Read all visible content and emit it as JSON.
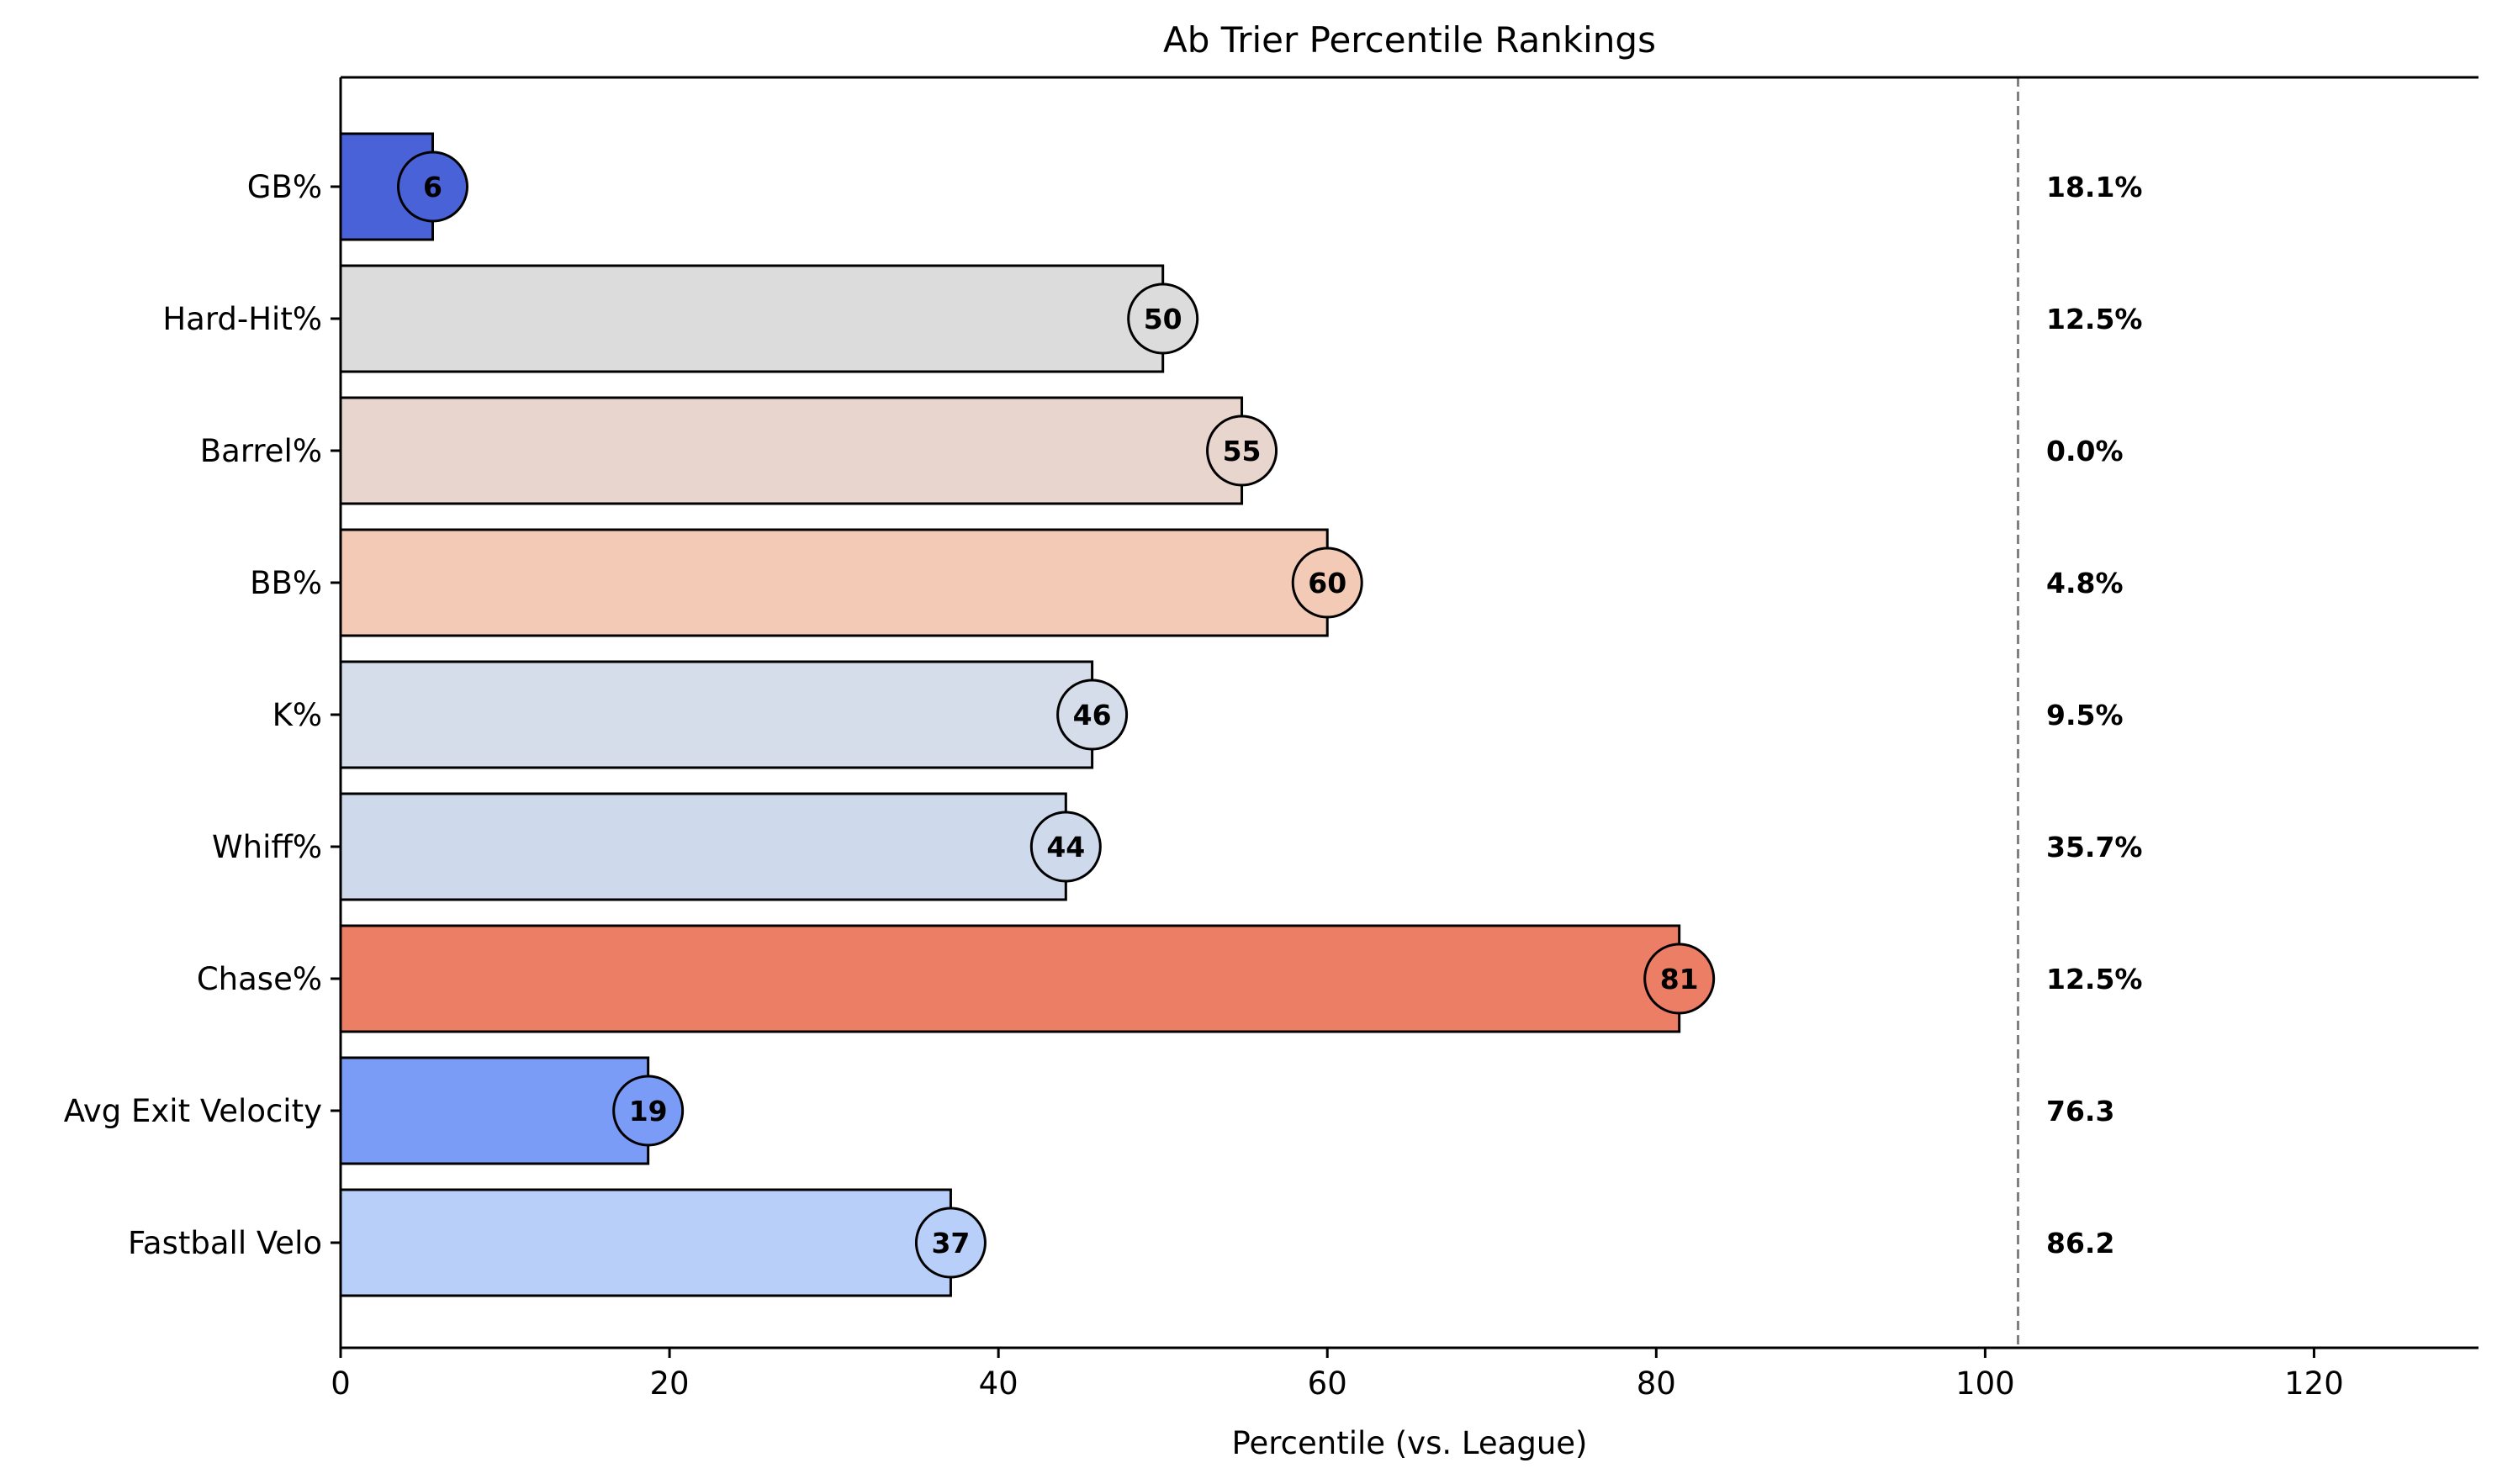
{
  "chart_data": {
    "type": "bar",
    "orientation": "horizontal",
    "title": "Ab Trier Percentile Rankings",
    "xlabel": "Percentile (vs. League)",
    "ylabel": "",
    "xlim": [
      0,
      130
    ],
    "xticks": [
      0,
      20,
      40,
      60,
      80,
      100,
      120
    ],
    "reference_line": {
      "x": 102,
      "style": "dashed",
      "color": "#808080"
    },
    "grid": false,
    "categories": [
      "GB%",
      "Hard-Hit%",
      "Barrel%",
      "BB%",
      "K%",
      "Whiff%",
      "Chase%",
      "Avg Exit Velocity",
      "Fastball Velo"
    ],
    "values": [
      5.6,
      50,
      54.8,
      60,
      45.7,
      44.1,
      81.4,
      18.7,
      37.1
    ],
    "percentile_labels": [
      "6",
      "50",
      "55",
      "60",
      "46",
      "44",
      "81",
      "19",
      "37"
    ],
    "stat_values": [
      "18.1%",
      "12.5%",
      "0.0%",
      "4.8%",
      "9.5%",
      "35.7%",
      "12.5%",
      "76.3",
      "86.2"
    ],
    "colors": [
      "#4a62d8",
      "#dcdcdc",
      "#e8d6ce",
      "#f2cab6",
      "#d4dde9",
      "#cedaec",
      "#ec7e65",
      "#7a9bf6",
      "#b8cff9"
    ]
  }
}
